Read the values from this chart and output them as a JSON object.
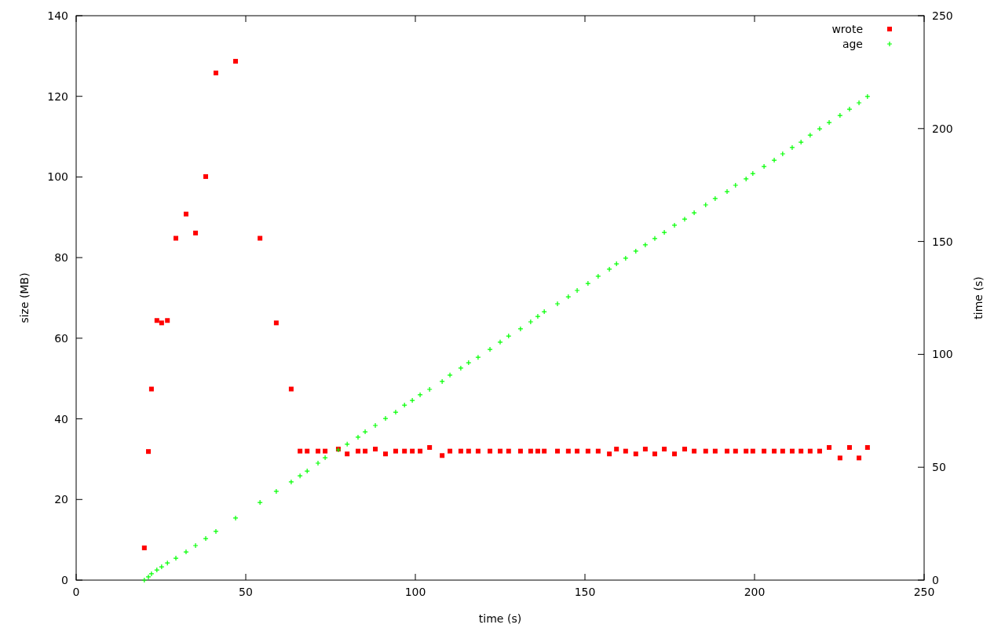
{
  "chart_data": {
    "type": "scatter",
    "xlabel": "time (s)",
    "ylabel": "size (MB)",
    "y2label": "time (s)",
    "x": [
      20.1,
      21.3,
      22.2,
      23.8,
      25.2,
      26.9,
      29.4,
      32.4,
      35.2,
      38.2,
      41.2,
      47.0,
      54.2,
      59.0,
      63.4,
      66.0,
      68.1,
      71.3,
      73.4,
      77.3,
      79.9,
      83.1,
      85.2,
      88.2,
      91.2,
      94.2,
      96.8,
      99.1,
      101.4,
      104.2,
      107.9,
      110.2,
      113.4,
      115.7,
      118.5,
      122.0,
      125.0,
      127.5,
      131.0,
      134.0,
      136.1,
      138.0,
      141.9,
      145.1,
      147.7,
      150.9,
      153.9,
      157.2,
      159.3,
      162.0,
      165.0,
      167.8,
      170.6,
      173.4,
      176.4,
      179.4,
      182.2,
      185.6,
      188.4,
      191.9,
      194.4,
      197.5,
      199.5,
      202.8,
      205.8,
      208.3,
      211.1,
      213.7,
      216.4,
      219.2,
      222.0,
      225.2,
      228.0,
      230.8,
      233.3
    ],
    "series": [
      {
        "name": "wrote",
        "color": "#ff0000",
        "marker": "square",
        "values": [
          8.0,
          31.9,
          47.4,
          64.4,
          63.8,
          64.4,
          84.8,
          90.8,
          86.1,
          100.1,
          125.8,
          128.7,
          84.8,
          63.8,
          47.4,
          32,
          32,
          32,
          32,
          32.5,
          31.3,
          32,
          32,
          32.5,
          31.3,
          32,
          32,
          32,
          32,
          32.9,
          30.9,
          32,
          32,
          32,
          32,
          32,
          32,
          32,
          32,
          32,
          32,
          32,
          32,
          32,
          32,
          32,
          32,
          31.3,
          32.5,
          32,
          31.3,
          32.5,
          31.3,
          32.5,
          31.3,
          32.5,
          32,
          32,
          32,
          32,
          32,
          32,
          32,
          32,
          32,
          32,
          32,
          32,
          32,
          32,
          32.9,
          30.3,
          32.9,
          30.3,
          32.9
        ]
      },
      {
        "name": "age",
        "color": "#00ff00",
        "marker": "cross",
        "axis": "y2",
        "values": [
          0,
          1.4,
          2.8,
          4.5,
          5.9,
          7.6,
          9.7,
          12.5,
          15.3,
          18.4,
          21.6,
          27.5,
          34.4,
          39.3,
          43.5,
          46.2,
          48.3,
          51.8,
          54.2,
          57.7,
          60.2,
          63.3,
          65.7,
          68.5,
          71.6,
          74.4,
          77.5,
          79.6,
          82.1,
          84.5,
          88.0,
          90.8,
          93.9,
          96.3,
          98.7,
          102.2,
          105.4,
          108.1,
          111.3,
          114.4,
          116.8,
          118.9,
          122.4,
          125.5,
          128.3,
          131.4,
          134.6,
          137.7,
          140.1,
          142.6,
          145.7,
          148.5,
          151.3,
          154.0,
          157.2,
          159.9,
          162.7,
          166.2,
          169.0,
          172.1,
          174.9,
          177.7,
          180.1,
          183.2,
          186.0,
          188.8,
          191.6,
          194.0,
          197.1,
          199.9,
          202.7,
          205.8,
          208.6,
          211.4,
          214.2
        ]
      }
    ],
    "xlim": [
      0,
      250
    ],
    "xticks": [
      0,
      50,
      100,
      150,
      200,
      250
    ],
    "ylim": [
      0,
      140
    ],
    "yticks": [
      0,
      20,
      40,
      60,
      80,
      100,
      120,
      140
    ],
    "y2lim": [
      0,
      250
    ],
    "y2ticks": [
      0,
      50,
      100,
      150,
      200,
      250
    ],
    "legend": "top right",
    "grid": false
  }
}
